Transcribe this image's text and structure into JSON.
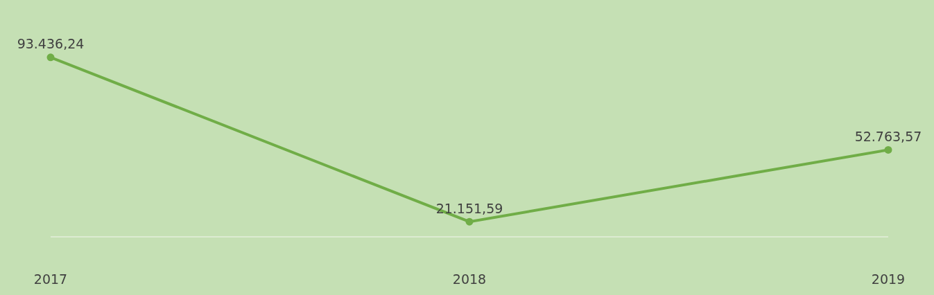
{
  "chart_data": {
    "type": "line",
    "categories": [
      "2017",
      "2018",
      "2019"
    ],
    "series": [
      {
        "color": "#70ad47",
        "values": [
          93436.24,
          21151.59,
          52763.57
        ],
        "value_labels": [
          "93.436,24",
          "21.151,59",
          "52.763,57"
        ]
      }
    ],
    "marker": "circle",
    "line_style": "solid",
    "grid": false,
    "tick_labels": "x"
  }
}
